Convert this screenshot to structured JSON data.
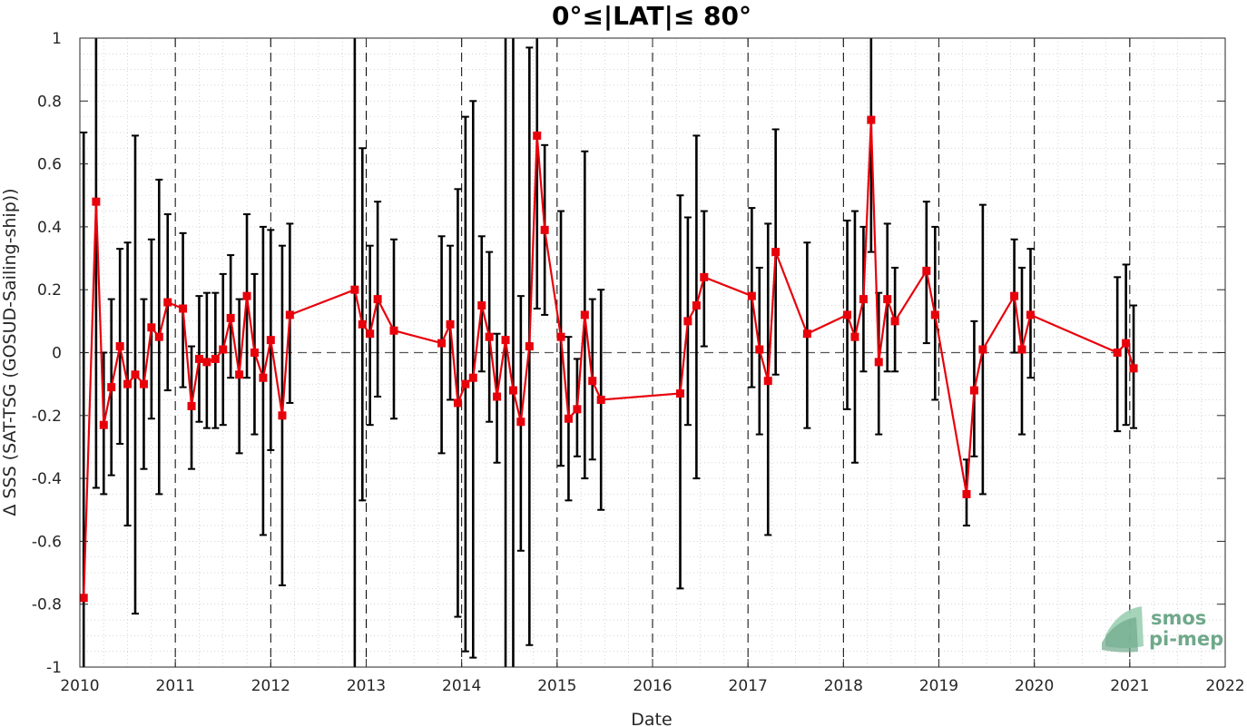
{
  "chart_data": {
    "type": "line",
    "title": "0°≤|LAT|≤ 80°",
    "xlabel": "Date",
    "ylabel": "Δ SSS (SAT-TSG (GOSUD-Sailing-ship))",
    "xlim": [
      2010,
      2022
    ],
    "ylim": [
      -1,
      1
    ],
    "x_ticks": [
      2010,
      2011,
      2012,
      2013,
      2014,
      2015,
      2016,
      2017,
      2018,
      2019,
      2020,
      2021,
      2022
    ],
    "y_ticks": [
      -1,
      -0.8,
      -0.6,
      -0.4,
      -0.2,
      0,
      0.2,
      0.4,
      0.6,
      0.8,
      1
    ],
    "y_tick_labels": [
      "-1",
      "-0.8",
      "-0.6",
      "-0.4",
      "-0.2",
      "0",
      "0.2",
      "0.4",
      "0.6",
      "0.8",
      "1"
    ],
    "grid": "minor dotted",
    "zero_line": "dashed",
    "year_boundaries": "dashed vertical lines",
    "colors": {
      "series": "#e8000b",
      "errorbar": "#000000",
      "grid": "#cccccc"
    },
    "series": [
      {
        "marker": "square",
        "points": [
          {
            "x": 2010.04,
            "y": -0.78,
            "lo": -1.0,
            "hi": 0.7
          },
          {
            "x": 2010.17,
            "y": 0.48,
            "lo": -0.43,
            "hi": 1.0
          },
          {
            "x": 2010.25,
            "y": -0.23,
            "lo": -0.45,
            "hi": 0.0
          },
          {
            "x": 2010.33,
            "y": -0.11,
            "lo": -0.39,
            "hi": 0.17
          },
          {
            "x": 2010.42,
            "y": 0.02,
            "lo": -0.29,
            "hi": 0.33
          },
          {
            "x": 2010.5,
            "y": -0.1,
            "lo": -0.55,
            "hi": 0.35
          },
          {
            "x": 2010.58,
            "y": -0.07,
            "lo": -0.83,
            "hi": 0.69
          },
          {
            "x": 2010.67,
            "y": -0.1,
            "lo": -0.37,
            "hi": 0.17
          },
          {
            "x": 2010.75,
            "y": 0.08,
            "lo": -0.21,
            "hi": 0.36
          },
          {
            "x": 2010.83,
            "y": 0.05,
            "lo": -0.45,
            "hi": 0.55
          },
          {
            "x": 2010.92,
            "y": 0.16,
            "lo": -0.12,
            "hi": 0.44
          },
          {
            "x": 2011.08,
            "y": 0.14,
            "lo": -0.11,
            "hi": 0.38
          },
          {
            "x": 2011.17,
            "y": -0.17,
            "lo": -0.37,
            "hi": 0.02
          },
          {
            "x": 2011.25,
            "y": -0.02,
            "lo": -0.22,
            "hi": 0.18
          },
          {
            "x": 2011.33,
            "y": -0.03,
            "lo": -0.24,
            "hi": 0.19
          },
          {
            "x": 2011.42,
            "y": -0.02,
            "lo": -0.24,
            "hi": 0.19
          },
          {
            "x": 2011.5,
            "y": 0.01,
            "lo": -0.23,
            "hi": 0.25
          },
          {
            "x": 2011.58,
            "y": 0.11,
            "lo": -0.08,
            "hi": 0.31
          },
          {
            "x": 2011.67,
            "y": -0.07,
            "lo": -0.32,
            "hi": 0.17
          },
          {
            "x": 2011.75,
            "y": 0.18,
            "lo": -0.08,
            "hi": 0.44
          },
          {
            "x": 2011.83,
            "y": 0.0,
            "lo": -0.26,
            "hi": 0.25
          },
          {
            "x": 2011.92,
            "y": -0.08,
            "lo": -0.58,
            "hi": 0.4
          },
          {
            "x": 2012.0,
            "y": 0.04,
            "lo": -0.31,
            "hi": 0.39
          },
          {
            "x": 2012.12,
            "y": -0.2,
            "lo": -0.74,
            "hi": 0.34
          },
          {
            "x": 2012.2,
            "y": 0.12,
            "lo": -0.16,
            "hi": 0.41
          },
          {
            "x": 2012.88,
            "y": 0.2,
            "lo": -1.0,
            "hi": 1.0
          },
          {
            "x": 2012.96,
            "y": 0.09,
            "lo": -0.47,
            "hi": 0.65
          },
          {
            "x": 2013.04,
            "y": 0.06,
            "lo": -0.23,
            "hi": 0.34
          },
          {
            "x": 2013.12,
            "y": 0.17,
            "lo": -0.14,
            "hi": 0.48
          },
          {
            "x": 2013.29,
            "y": 0.07,
            "lo": -0.21,
            "hi": 0.36
          },
          {
            "x": 2013.79,
            "y": 0.03,
            "lo": -0.32,
            "hi": 0.37
          },
          {
            "x": 2013.88,
            "y": 0.09,
            "lo": -0.15,
            "hi": 0.34
          },
          {
            "x": 2013.96,
            "y": -0.16,
            "lo": -0.84,
            "hi": 0.52
          },
          {
            "x": 2014.04,
            "y": -0.1,
            "lo": -0.95,
            "hi": 0.75
          },
          {
            "x": 2014.12,
            "y": -0.08,
            "lo": -0.97,
            "hi": 0.8
          },
          {
            "x": 2014.21,
            "y": 0.15,
            "lo": -0.06,
            "hi": 0.37
          },
          {
            "x": 2014.29,
            "y": 0.05,
            "lo": -0.22,
            "hi": 0.32
          },
          {
            "x": 2014.37,
            "y": -0.14,
            "lo": -0.35,
            "hi": 0.06
          },
          {
            "x": 2014.46,
            "y": 0.04,
            "lo": -1.0,
            "hi": 1.0
          },
          {
            "x": 2014.54,
            "y": -0.12,
            "lo": -1.0,
            "hi": 1.0
          },
          {
            "x": 2014.62,
            "y": -0.22,
            "lo": -0.63,
            "hi": 0.18
          },
          {
            "x": 2014.71,
            "y": 0.02,
            "lo": -0.93,
            "hi": 0.97
          },
          {
            "x": 2014.79,
            "y": 0.69,
            "lo": 0.14,
            "hi": 1.0
          },
          {
            "x": 2014.87,
            "y": 0.39,
            "lo": 0.12,
            "hi": 0.66
          },
          {
            "x": 2015.04,
            "y": 0.05,
            "lo": -0.36,
            "hi": 0.45
          },
          {
            "x": 2015.12,
            "y": -0.21,
            "lo": -0.47,
            "hi": 0.05
          },
          {
            "x": 2015.21,
            "y": -0.18,
            "lo": -0.33,
            "hi": -0.02
          },
          {
            "x": 2015.29,
            "y": 0.12,
            "lo": -0.4,
            "hi": 0.64
          },
          {
            "x": 2015.37,
            "y": -0.09,
            "lo": -0.34,
            "hi": 0.17
          },
          {
            "x": 2015.46,
            "y": -0.15,
            "lo": -0.5,
            "hi": 0.2
          },
          {
            "x": 2016.29,
            "y": -0.13,
            "lo": -0.75,
            "hi": 0.5
          },
          {
            "x": 2016.37,
            "y": 0.1,
            "lo": -0.23,
            "hi": 0.43
          },
          {
            "x": 2016.46,
            "y": 0.15,
            "lo": -0.4,
            "hi": 0.69
          },
          {
            "x": 2016.54,
            "y": 0.24,
            "lo": 0.02,
            "hi": 0.45
          },
          {
            "x": 2017.04,
            "y": 0.18,
            "lo": -0.11,
            "hi": 0.46
          },
          {
            "x": 2017.12,
            "y": 0.01,
            "lo": -0.26,
            "hi": 0.27
          },
          {
            "x": 2017.21,
            "y": -0.09,
            "lo": -0.58,
            "hi": 0.41
          },
          {
            "x": 2017.29,
            "y": 0.32,
            "lo": -0.07,
            "hi": 0.71
          },
          {
            "x": 2017.62,
            "y": 0.06,
            "lo": -0.24,
            "hi": 0.35
          },
          {
            "x": 2018.04,
            "y": 0.12,
            "lo": -0.18,
            "hi": 0.42
          },
          {
            "x": 2018.12,
            "y": 0.05,
            "lo": -0.35,
            "hi": 0.45
          },
          {
            "x": 2018.21,
            "y": 0.17,
            "lo": -0.06,
            "hi": 0.4
          },
          {
            "x": 2018.29,
            "y": 0.74,
            "lo": 0.32,
            "hi": 1.0
          },
          {
            "x": 2018.37,
            "y": -0.03,
            "lo": -0.26,
            "hi": 0.19
          },
          {
            "x": 2018.46,
            "y": 0.17,
            "lo": -0.06,
            "hi": 0.41
          },
          {
            "x": 2018.54,
            "y": 0.1,
            "lo": -0.06,
            "hi": 0.27
          },
          {
            "x": 2018.87,
            "y": 0.26,
            "lo": 0.03,
            "hi": 0.48
          },
          {
            "x": 2018.96,
            "y": 0.12,
            "lo": -0.15,
            "hi": 0.4
          },
          {
            "x": 2019.29,
            "y": -0.45,
            "lo": -0.55,
            "hi": -0.34
          },
          {
            "x": 2019.37,
            "y": -0.12,
            "lo": -0.33,
            "hi": 0.1
          },
          {
            "x": 2019.46,
            "y": 0.01,
            "lo": -0.45,
            "hi": 0.47
          },
          {
            "x": 2019.79,
            "y": 0.18,
            "lo": 0.0,
            "hi": 0.36
          },
          {
            "x": 2019.87,
            "y": 0.01,
            "lo": -0.26,
            "hi": 0.27
          },
          {
            "x": 2019.96,
            "y": 0.12,
            "lo": -0.08,
            "hi": 0.33
          },
          {
            "x": 2020.87,
            "y": 0.0,
            "lo": -0.25,
            "hi": 0.24
          },
          {
            "x": 2020.96,
            "y": 0.03,
            "lo": -0.23,
            "hi": 0.28
          },
          {
            "x": 2021.04,
            "y": -0.05,
            "lo": -0.24,
            "hi": 0.15
          }
        ]
      }
    ],
    "legend": "none"
  },
  "logo": {
    "line1": "smos",
    "line2": "pi-mep"
  }
}
